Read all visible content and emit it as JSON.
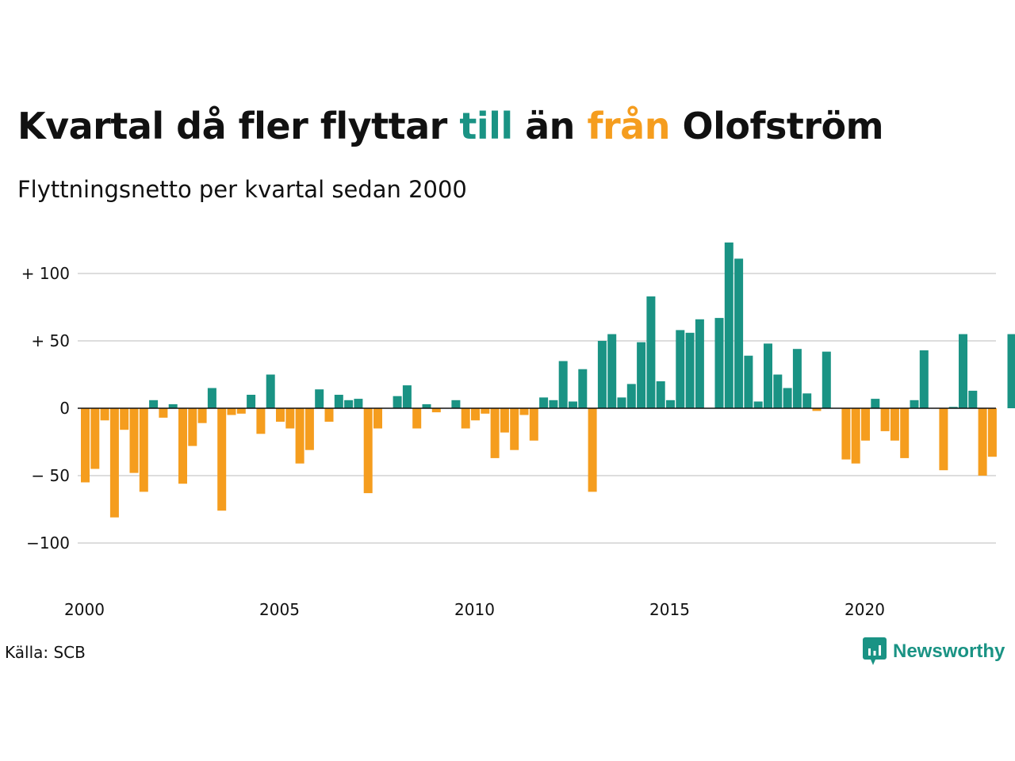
{
  "title": {
    "part1": "Kvartal då fler flyttar ",
    "till": "till",
    "part2": " än ",
    "fran": "från",
    "part3": " Olofström"
  },
  "subtitle": "Flyttningsnetto per kvartal sedan 2000",
  "source": "Källa: SCB",
  "brand": "Newsworthy",
  "colors": {
    "positive": "#1a9384",
    "negative": "#f59d1e",
    "text": "#111111",
    "grid": "#dddddd"
  },
  "chart_data": {
    "type": "bar",
    "title": "Kvartal då fler flyttar till än från Olofström",
    "subtitle": "Flyttningsnetto per kvartal sedan 2000",
    "start": "2000 Q1",
    "ylim": [
      -130,
      125
    ],
    "yticks": [
      {
        "value": 100,
        "label": "+ 100"
      },
      {
        "value": 50,
        "label": "+  50"
      },
      {
        "value": 0,
        "label": "0"
      },
      {
        "value": -50,
        "label": "− 50"
      },
      {
        "value": -100,
        "label": "−100"
      }
    ],
    "xticks": [
      {
        "label": "2000",
        "quarter_index": 0
      },
      {
        "label": "2005",
        "quarter_index": 20
      },
      {
        "label": "2010",
        "quarter_index": 40
      },
      {
        "label": "2015",
        "quarter_index": 60
      },
      {
        "label": "2020",
        "quarter_index": 80
      }
    ],
    "categories": [
      "2000 Q1",
      "2000 Q2",
      "2000 Q3",
      "2000 Q4",
      "2001 Q1",
      "2001 Q2",
      "2001 Q3",
      "2001 Q4",
      "2002 Q1",
      "2002 Q2",
      "2002 Q3",
      "2002 Q4",
      "2003 Q1",
      "2003 Q2",
      "2003 Q3",
      "2003 Q4",
      "2004 Q1",
      "2004 Q2",
      "2004 Q3",
      "2004 Q4",
      "2005 Q1",
      "2005 Q2",
      "2005 Q3",
      "2005 Q4",
      "2006 Q1",
      "2006 Q2",
      "2006 Q3",
      "2006 Q4",
      "2007 Q1",
      "2007 Q2",
      "2007 Q3",
      "2007 Q4",
      "2008 Q1",
      "2008 Q2",
      "2008 Q3",
      "2008 Q4",
      "2009 Q1",
      "2009 Q2",
      "2009 Q3",
      "2009 Q4",
      "2010 Q1",
      "2010 Q2",
      "2010 Q3",
      "2010 Q4",
      "2011 Q1",
      "2011 Q2",
      "2011 Q3",
      "2011 Q4",
      "2012 Q1",
      "2012 Q2",
      "2012 Q3",
      "2012 Q4",
      "2013 Q1",
      "2013 Q2",
      "2013 Q3",
      "2013 Q4",
      "2014 Q1",
      "2014 Q2",
      "2014 Q3",
      "2014 Q4",
      "2015 Q1",
      "2015 Q2",
      "2015 Q3",
      "2015 Q4",
      "2016 Q1",
      "2016 Q2",
      "2016 Q3",
      "2016 Q4",
      "2017 Q1",
      "2017 Q2",
      "2017 Q3",
      "2017 Q4",
      "2018 Q1",
      "2018 Q2",
      "2018 Q3",
      "2018 Q4",
      "2019 Q1",
      "2019 Q2",
      "2019 Q3",
      "2019 Q4",
      "2020 Q1",
      "2020 Q2",
      "2020 Q3",
      "2020 Q4",
      "2021 Q1",
      "2021 Q2",
      "2021 Q3",
      "2021 Q4",
      "2022 Q1",
      "2022 Q2",
      "2022 Q3",
      "2022 Q4",
      "2023 Q1",
      "2023 Q2",
      "2023 Q3",
      "2023 Q4"
    ],
    "values": [
      -55,
      -45,
      -9,
      -81,
      -16,
      -48,
      -62,
      6,
      -7,
      3,
      -56,
      -28,
      -11,
      15,
      -76,
      -5,
      -4,
      10,
      -19,
      25,
      -10,
      -15,
      -41,
      -31,
      14,
      -10,
      10,
      6,
      7,
      -63,
      -15,
      0,
      9,
      17,
      -15,
      3,
      -3,
      0,
      6,
      -15,
      -9,
      -4,
      -37,
      -18,
      -31,
      -5,
      -24,
      8,
      6,
      35,
      5,
      29,
      -62,
      50,
      55,
      8,
      18,
      49,
      83,
      20,
      6,
      58,
      56,
      66,
      0,
      67,
      123,
      111,
      39,
      5,
      48,
      25,
      15,
      44,
      11,
      -2,
      42,
      0,
      -38,
      -41,
      -24,
      7,
      -17,
      -24,
      -37,
      6,
      43,
      0,
      -46,
      1,
      55,
      13,
      -50,
      -36,
      0,
      55
    ]
  }
}
